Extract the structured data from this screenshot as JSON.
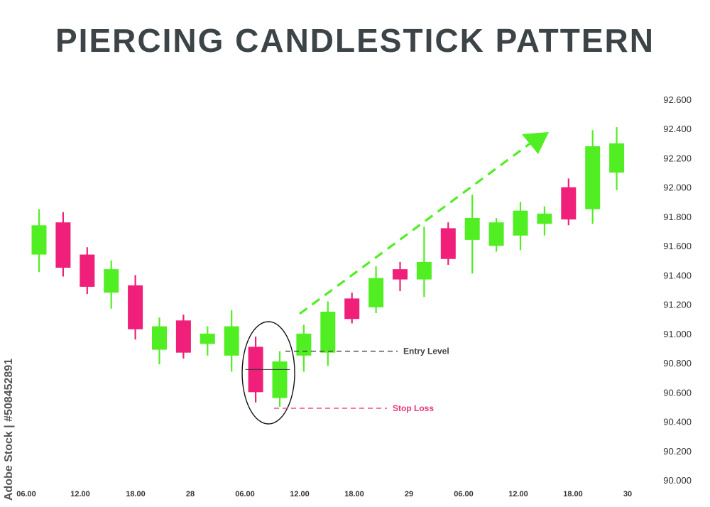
{
  "title": "PIERCING CANDLESTICK PATTERN",
  "watermark": "Adobe Stock | #508452891",
  "colors": {
    "bull": "#52ee24",
    "bear": "#ef1f7a",
    "entry": "#444444",
    "stop": "#e8337a",
    "arrow": "#52ee24",
    "text": "#3c4447"
  },
  "chart_data": {
    "type": "candlestick",
    "title": "PIERCING CANDLESTICK PATTERN",
    "xlabel": "",
    "ylabel": "",
    "ylim": [
      90.0,
      92.6
    ],
    "y_ticks": [
      "92.600",
      "92.400",
      "92.200",
      "92.000",
      "91.800",
      "91.600",
      "91.400",
      "91.200",
      "91.000",
      "90.800",
      "90.600",
      "90.400",
      "90.200",
      "90.000"
    ],
    "x_ticks": [
      "06.00",
      "12.00",
      "18.00",
      "28",
      "06.00",
      "12.00",
      "18.00",
      "29",
      "06.00",
      "12.00",
      "18.00",
      "30"
    ],
    "grid": false,
    "candles": [
      {
        "open": 91.54,
        "high": 91.85,
        "low": 91.42,
        "close": 91.74
      },
      {
        "open": 91.76,
        "high": 91.83,
        "low": 91.39,
        "close": 91.45
      },
      {
        "open": 91.54,
        "high": 91.59,
        "low": 91.27,
        "close": 91.32
      },
      {
        "open": 91.28,
        "high": 91.5,
        "low": 91.17,
        "close": 91.44
      },
      {
        "open": 91.33,
        "high": 91.4,
        "low": 90.96,
        "close": 91.03
      },
      {
        "open": 90.89,
        "high": 91.11,
        "low": 90.79,
        "close": 91.05
      },
      {
        "open": 91.09,
        "high": 91.13,
        "low": 90.83,
        "close": 90.87
      },
      {
        "open": 90.93,
        "high": 91.05,
        "low": 90.85,
        "close": 91.0
      },
      {
        "open": 90.85,
        "high": 91.16,
        "low": 90.74,
        "close": 91.05
      },
      {
        "open": 90.91,
        "high": 90.98,
        "low": 90.53,
        "close": 90.6
      },
      {
        "open": 90.56,
        "high": 90.88,
        "low": 90.5,
        "close": 90.81
      },
      {
        "open": 90.85,
        "high": 91.06,
        "low": 90.74,
        "close": 91.0
      },
      {
        "open": 90.87,
        "high": 91.22,
        "low": 90.78,
        "close": 91.15
      },
      {
        "open": 91.24,
        "high": 91.28,
        "low": 91.07,
        "close": 91.1
      },
      {
        "open": 91.18,
        "high": 91.46,
        "low": 91.14,
        "close": 91.38
      },
      {
        "open": 91.44,
        "high": 91.49,
        "low": 91.29,
        "close": 91.37
      },
      {
        "open": 91.37,
        "high": 91.73,
        "low": 91.25,
        "close": 91.49
      },
      {
        "open": 91.72,
        "high": 91.76,
        "low": 91.47,
        "close": 91.51
      },
      {
        "open": 91.64,
        "high": 91.95,
        "low": 91.41,
        "close": 91.79
      },
      {
        "open": 91.6,
        "high": 91.79,
        "low": 91.56,
        "close": 91.76
      },
      {
        "open": 91.67,
        "high": 91.9,
        "low": 91.57,
        "close": 91.84
      },
      {
        "open": 91.75,
        "high": 91.87,
        "low": 91.67,
        "close": 91.82
      },
      {
        "open": 92.0,
        "high": 92.06,
        "low": 91.74,
        "close": 91.78
      },
      {
        "open": 91.85,
        "high": 92.39,
        "low": 91.75,
        "close": 92.28
      },
      {
        "open": 92.1,
        "high": 92.41,
        "low": 91.98,
        "close": 92.3
      }
    ],
    "annotations": {
      "entry_label": "Entry Level",
      "entry_value": 90.88,
      "stop_label": "Stop Loss",
      "stop_value": 90.49
    }
  }
}
